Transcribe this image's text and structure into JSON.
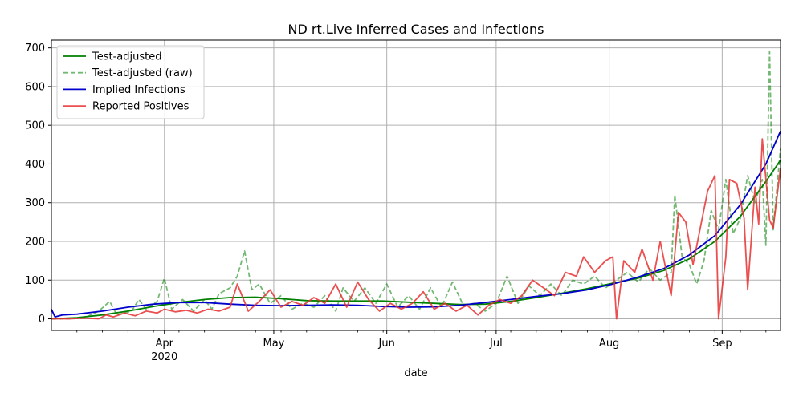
{
  "chart_data": {
    "type": "line",
    "title": "ND rt.Live Inferred Cases and Infections",
    "xlabel": "date",
    "ylabel": "",
    "x_start": "2020-03-01",
    "x_end": "2020-09-17",
    "ylim": [
      -30,
      720
    ],
    "yticks": [
      0,
      100,
      200,
      300,
      400,
      500,
      600,
      700
    ],
    "xticks": [
      {
        "date": "2020-04-01",
        "label": "Apr",
        "sublabel": "2020"
      },
      {
        "date": "2020-05-01",
        "label": "May",
        "sublabel": ""
      },
      {
        "date": "2020-06-01",
        "label": "Jun",
        "sublabel": ""
      },
      {
        "date": "2020-07-01",
        "label": "Jul",
        "sublabel": ""
      },
      {
        "date": "2020-08-01",
        "label": "Aug",
        "sublabel": ""
      },
      {
        "date": "2020-09-01",
        "label": "Sep",
        "sublabel": ""
      }
    ],
    "grid": true,
    "legend_position": "top-left",
    "series": [
      {
        "name": "Test-adjusted",
        "color": "#008000",
        "style": "solid",
        "points": [
          [
            "2020-03-01",
            0
          ],
          [
            "2020-03-08",
            3
          ],
          [
            "2020-03-15",
            10
          ],
          [
            "2020-03-22",
            20
          ],
          [
            "2020-03-29",
            32
          ],
          [
            "2020-04-05",
            42
          ],
          [
            "2020-04-12",
            50
          ],
          [
            "2020-04-19",
            55
          ],
          [
            "2020-04-26",
            56
          ],
          [
            "2020-05-03",
            52
          ],
          [
            "2020-05-10",
            47
          ],
          [
            "2020-05-17",
            46
          ],
          [
            "2020-05-24",
            46
          ],
          [
            "2020-05-31",
            46
          ],
          [
            "2020-06-07",
            43
          ],
          [
            "2020-06-14",
            40
          ],
          [
            "2020-06-21",
            37
          ],
          [
            "2020-06-28",
            38
          ],
          [
            "2020-07-05",
            45
          ],
          [
            "2020-07-12",
            55
          ],
          [
            "2020-07-19",
            66
          ],
          [
            "2020-07-26",
            78
          ],
          [
            "2020-08-02",
            92
          ],
          [
            "2020-08-09",
            105
          ],
          [
            "2020-08-16",
            125
          ],
          [
            "2020-08-23",
            155
          ],
          [
            "2020-08-30",
            200
          ],
          [
            "2020-09-06",
            265
          ],
          [
            "2020-09-13",
            355
          ],
          [
            "2020-09-17",
            410
          ]
        ]
      },
      {
        "name": "Test-adjusted (raw)",
        "color": "#008000",
        "style": "dashed",
        "points": [
          [
            "2020-03-01",
            0
          ],
          [
            "2020-03-05",
            0
          ],
          [
            "2020-03-10",
            2
          ],
          [
            "2020-03-14",
            20
          ],
          [
            "2020-03-17",
            45
          ],
          [
            "2020-03-19",
            10
          ],
          [
            "2020-03-23",
            20
          ],
          [
            "2020-03-25",
            50
          ],
          [
            "2020-03-27",
            25
          ],
          [
            "2020-03-30",
            45
          ],
          [
            "2020-04-01",
            105
          ],
          [
            "2020-04-03",
            25
          ],
          [
            "2020-04-06",
            50
          ],
          [
            "2020-04-09",
            20
          ],
          [
            "2020-04-12",
            50
          ],
          [
            "2020-04-14",
            25
          ],
          [
            "2020-04-16",
            65
          ],
          [
            "2020-04-19",
            80
          ],
          [
            "2020-04-21",
            110
          ],
          [
            "2020-04-23",
            175
          ],
          [
            "2020-04-25",
            75
          ],
          [
            "2020-04-27",
            90
          ],
          [
            "2020-04-30",
            40
          ],
          [
            "2020-05-03",
            60
          ],
          [
            "2020-05-06",
            25
          ],
          [
            "2020-05-09",
            40
          ],
          [
            "2020-05-12",
            30
          ],
          [
            "2020-05-15",
            60
          ],
          [
            "2020-05-18",
            20
          ],
          [
            "2020-05-20",
            80
          ],
          [
            "2020-05-23",
            45
          ],
          [
            "2020-05-26",
            80
          ],
          [
            "2020-05-29",
            40
          ],
          [
            "2020-06-01",
            90
          ],
          [
            "2020-06-04",
            30
          ],
          [
            "2020-06-07",
            60
          ],
          [
            "2020-06-10",
            25
          ],
          [
            "2020-06-13",
            80
          ],
          [
            "2020-06-16",
            30
          ],
          [
            "2020-06-19",
            95
          ],
          [
            "2020-06-22",
            35
          ],
          [
            "2020-06-25",
            40
          ],
          [
            "2020-06-28",
            20
          ],
          [
            "2020-07-01",
            40
          ],
          [
            "2020-07-04",
            110
          ],
          [
            "2020-07-07",
            40
          ],
          [
            "2020-07-10",
            85
          ],
          [
            "2020-07-13",
            60
          ],
          [
            "2020-07-16",
            90
          ],
          [
            "2020-07-19",
            60
          ],
          [
            "2020-07-22",
            100
          ],
          [
            "2020-07-25",
            90
          ],
          [
            "2020-07-28",
            110
          ],
          [
            "2020-07-31",
            80
          ],
          [
            "2020-08-03",
            100
          ],
          [
            "2020-08-06",
            120
          ],
          [
            "2020-08-09",
            95
          ],
          [
            "2020-08-12",
            130
          ],
          [
            "2020-08-15",
            100
          ],
          [
            "2020-08-18",
            120
          ],
          [
            "2020-08-19",
            320
          ],
          [
            "2020-08-21",
            160
          ],
          [
            "2020-08-23",
            140
          ],
          [
            "2020-08-25",
            90
          ],
          [
            "2020-08-27",
            150
          ],
          [
            "2020-08-29",
            280
          ],
          [
            "2020-08-31",
            230
          ],
          [
            "2020-09-02",
            360
          ],
          [
            "2020-09-04",
            220
          ],
          [
            "2020-09-06",
            260
          ],
          [
            "2020-09-08",
            370
          ],
          [
            "2020-09-10",
            300
          ],
          [
            "2020-09-12",
            360
          ],
          [
            "2020-09-13",
            190
          ],
          [
            "2020-09-14",
            690
          ],
          [
            "2020-09-15",
            230
          ],
          [
            "2020-09-17",
            440
          ]
        ]
      },
      {
        "name": "Implied Infections",
        "color": "#0000cc",
        "style": "solid",
        "points": [
          [
            "2020-03-01",
            25
          ],
          [
            "2020-03-02",
            5
          ],
          [
            "2020-03-04",
            10
          ],
          [
            "2020-03-08",
            12
          ],
          [
            "2020-03-15",
            20
          ],
          [
            "2020-03-22",
            30
          ],
          [
            "2020-03-29",
            38
          ],
          [
            "2020-04-05",
            42
          ],
          [
            "2020-04-12",
            42
          ],
          [
            "2020-04-19",
            38
          ],
          [
            "2020-04-26",
            35
          ],
          [
            "2020-05-03",
            34
          ],
          [
            "2020-05-10",
            35
          ],
          [
            "2020-05-17",
            36
          ],
          [
            "2020-05-24",
            35
          ],
          [
            "2020-05-31",
            32
          ],
          [
            "2020-06-07",
            30
          ],
          [
            "2020-06-14",
            31
          ],
          [
            "2020-06-21",
            35
          ],
          [
            "2020-06-28",
            42
          ],
          [
            "2020-07-05",
            50
          ],
          [
            "2020-07-12",
            58
          ],
          [
            "2020-07-19",
            65
          ],
          [
            "2020-07-26",
            75
          ],
          [
            "2020-08-02",
            90
          ],
          [
            "2020-08-09",
            108
          ],
          [
            "2020-08-16",
            130
          ],
          [
            "2020-08-23",
            165
          ],
          [
            "2020-08-30",
            215
          ],
          [
            "2020-09-06",
            295
          ],
          [
            "2020-09-13",
            400
          ],
          [
            "2020-09-17",
            485
          ]
        ]
      },
      {
        "name": "Reported Positives",
        "color": "#e83030",
        "style": "solid",
        "points": [
          [
            "2020-03-01",
            0
          ],
          [
            "2020-03-06",
            0
          ],
          [
            "2020-03-10",
            2
          ],
          [
            "2020-03-14",
            0
          ],
          [
            "2020-03-16",
            10
          ],
          [
            "2020-03-18",
            5
          ],
          [
            "2020-03-21",
            15
          ],
          [
            "2020-03-24",
            8
          ],
          [
            "2020-03-27",
            20
          ],
          [
            "2020-03-30",
            15
          ],
          [
            "2020-04-01",
            25
          ],
          [
            "2020-04-04",
            18
          ],
          [
            "2020-04-07",
            22
          ],
          [
            "2020-04-10",
            15
          ],
          [
            "2020-04-13",
            25
          ],
          [
            "2020-04-16",
            20
          ],
          [
            "2020-04-19",
            30
          ],
          [
            "2020-04-21",
            90
          ],
          [
            "2020-04-24",
            20
          ],
          [
            "2020-04-27",
            45
          ],
          [
            "2020-04-30",
            75
          ],
          [
            "2020-05-03",
            30
          ],
          [
            "2020-05-06",
            45
          ],
          [
            "2020-05-09",
            35
          ],
          [
            "2020-05-12",
            55
          ],
          [
            "2020-05-15",
            40
          ],
          [
            "2020-05-18",
            90
          ],
          [
            "2020-05-21",
            30
          ],
          [
            "2020-05-24",
            95
          ],
          [
            "2020-05-27",
            50
          ],
          [
            "2020-05-30",
            20
          ],
          [
            "2020-06-02",
            40
          ],
          [
            "2020-06-05",
            25
          ],
          [
            "2020-06-08",
            40
          ],
          [
            "2020-06-11",
            70
          ],
          [
            "2020-06-14",
            25
          ],
          [
            "2020-06-17",
            40
          ],
          [
            "2020-06-20",
            20
          ],
          [
            "2020-06-23",
            35
          ],
          [
            "2020-06-26",
            10
          ],
          [
            "2020-06-29",
            35
          ],
          [
            "2020-07-02",
            50
          ],
          [
            "2020-07-05",
            40
          ],
          [
            "2020-07-08",
            60
          ],
          [
            "2020-07-11",
            100
          ],
          [
            "2020-07-14",
            80
          ],
          [
            "2020-07-17",
            60
          ],
          [
            "2020-07-20",
            120
          ],
          [
            "2020-07-23",
            110
          ],
          [
            "2020-07-25",
            160
          ],
          [
            "2020-07-28",
            120
          ],
          [
            "2020-07-31",
            150
          ],
          [
            "2020-08-02",
            160
          ],
          [
            "2020-08-03",
            0
          ],
          [
            "2020-08-05",
            150
          ],
          [
            "2020-08-08",
            120
          ],
          [
            "2020-08-10",
            180
          ],
          [
            "2020-08-13",
            100
          ],
          [
            "2020-08-15",
            200
          ],
          [
            "2020-08-18",
            60
          ],
          [
            "2020-08-20",
            275
          ],
          [
            "2020-08-22",
            250
          ],
          [
            "2020-08-24",
            140
          ],
          [
            "2020-08-26",
            235
          ],
          [
            "2020-08-28",
            330
          ],
          [
            "2020-08-30",
            370
          ],
          [
            "2020-08-31",
            0
          ],
          [
            "2020-09-02",
            160
          ],
          [
            "2020-09-03",
            360
          ],
          [
            "2020-09-05",
            350
          ],
          [
            "2020-09-07",
            260
          ],
          [
            "2020-09-08",
            75
          ],
          [
            "2020-09-10",
            340
          ],
          [
            "2020-09-11",
            245
          ],
          [
            "2020-09-12",
            465
          ],
          [
            "2020-09-14",
            255
          ],
          [
            "2020-09-15",
            235
          ],
          [
            "2020-09-17",
            390
          ]
        ]
      }
    ]
  }
}
